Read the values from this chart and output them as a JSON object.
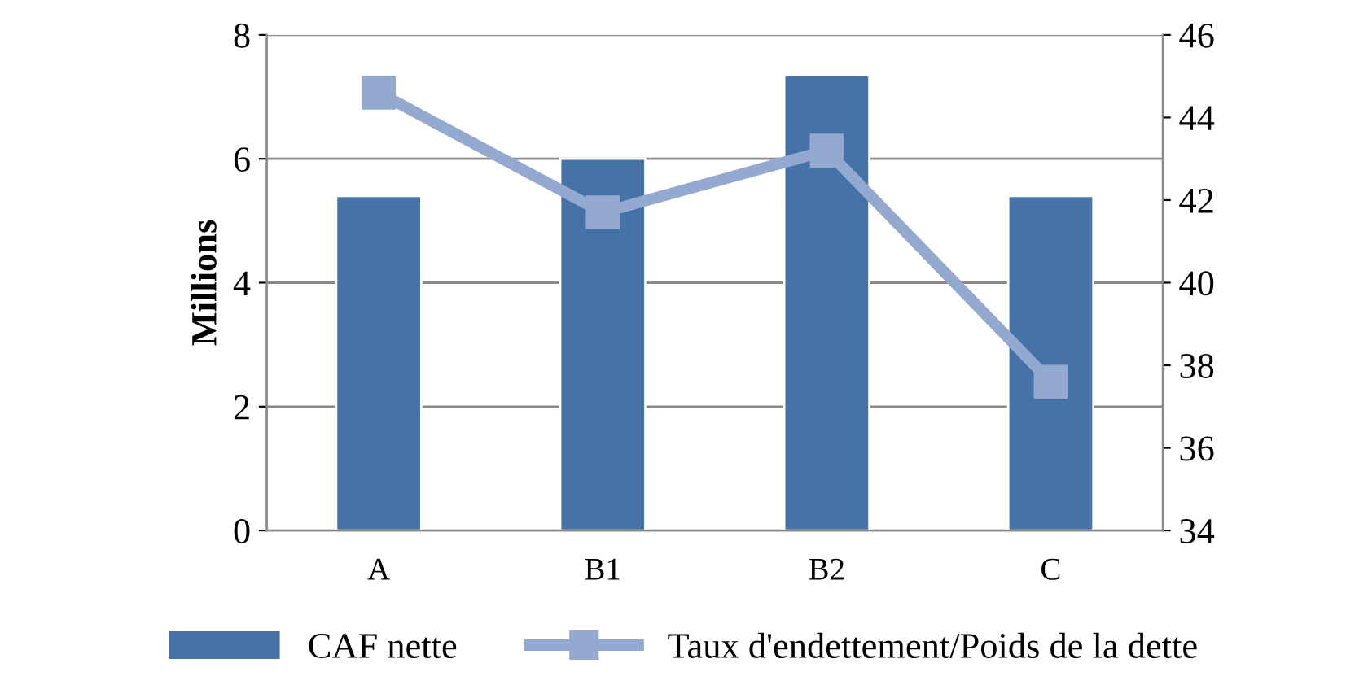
{
  "chart_data": {
    "type": "bar",
    "ylabel": "Millions",
    "categories": [
      "A",
      "B1",
      "B2",
      "C"
    ],
    "series": [
      {
        "name": "CAF nette",
        "color": "#4572a7",
        "values": [
          5.4,
          6.0,
          7.35,
          5.4
        ]
      },
      {
        "name": "Taux d'endettement/Poids de la dette",
        "type": "line",
        "axis": "y2",
        "color": "#93a9cf",
        "values": [
          44.6,
          41.7,
          43.2,
          37.6
        ],
        "marker": "square"
      }
    ],
    "ylim": [
      0,
      8
    ],
    "yticks": [
      0,
      2,
      4,
      6,
      8
    ],
    "y2lim": [
      34,
      46
    ],
    "y2ticks": [
      34,
      36,
      38,
      40,
      42,
      44,
      46
    ],
    "grid": "y",
    "legend": "bottom"
  }
}
